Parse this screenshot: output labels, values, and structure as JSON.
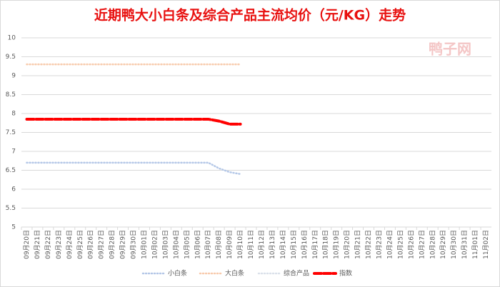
{
  "chart_data": {
    "type": "line",
    "title": "近期鸭大小白条及综合产品主流均价（元/KG）走势",
    "watermark": "鸭子网",
    "categories": [
      "09月20日",
      "09月21日",
      "09月22日",
      "09月23日",
      "09月24日",
      "09月25日",
      "09月26日",
      "09月27日",
      "09月28日",
      "09月29日",
      "09月30日",
      "10月01日",
      "10月02日",
      "10月03日",
      "10月04日",
      "10月05日",
      "10月06日",
      "10月07日",
      "10月08日",
      "10月09日",
      "10月10日",
      "10月11日",
      "10月12日",
      "10月13日",
      "10月14日",
      "10月15日",
      "10月16日",
      "10月17日",
      "10月18日",
      "10月19日",
      "10月20日",
      "10月21日",
      "10月22日",
      "10月23日",
      "10月24日",
      "10月25日",
      "10月26日",
      "10月27日",
      "10月28日",
      "10月29日",
      "10月30日",
      "10月31日",
      "11月01日",
      "11月02日"
    ],
    "series": [
      {
        "name": "小白条",
        "color": "#b4c7e7",
        "style": "dot",
        "values": [
          6.7,
          6.7,
          6.7,
          6.7,
          6.7,
          6.7,
          6.7,
          6.7,
          6.7,
          6.7,
          6.7,
          6.7,
          6.7,
          6.7,
          6.7,
          6.7,
          6.7,
          6.7,
          6.55,
          6.45,
          6.4,
          null,
          null,
          null,
          null,
          null,
          null,
          null,
          null,
          null,
          null,
          null,
          null,
          null,
          null,
          null,
          null,
          null,
          null,
          null,
          null,
          null,
          null,
          null
        ]
      },
      {
        "name": "大白条",
        "color": "#f8cbad",
        "style": "dot",
        "values": [
          9.3,
          9.3,
          9.3,
          9.3,
          9.3,
          9.3,
          9.3,
          9.3,
          9.3,
          9.3,
          9.3,
          9.3,
          9.3,
          9.3,
          9.3,
          9.3,
          9.3,
          9.3,
          9.3,
          9.3,
          9.3,
          null,
          null,
          null,
          null,
          null,
          null,
          null,
          null,
          null,
          null,
          null,
          null,
          null,
          null,
          null,
          null,
          null,
          null,
          null,
          null,
          null,
          null,
          null
        ]
      },
      {
        "name": "综合产品",
        "color": "#dbe1ea",
        "style": "dot",
        "values": [
          7.85,
          7.85,
          7.85,
          7.85,
          7.85,
          7.85,
          7.85,
          7.85,
          7.85,
          7.85,
          7.85,
          7.85,
          7.85,
          7.85,
          7.85,
          7.85,
          7.85,
          7.85,
          7.8,
          7.72,
          7.72,
          null,
          null,
          null,
          null,
          null,
          null,
          null,
          null,
          null,
          null,
          null,
          null,
          null,
          null,
          null,
          null,
          null,
          null,
          null,
          null,
          null,
          null,
          null
        ]
      },
      {
        "name": "指数",
        "color": "#ff0000",
        "style": "dash",
        "values": [
          7.85,
          7.85,
          7.85,
          7.85,
          7.85,
          7.85,
          7.85,
          7.85,
          7.85,
          7.85,
          7.85,
          7.85,
          7.85,
          7.85,
          7.85,
          7.85,
          7.85,
          7.85,
          7.8,
          7.72,
          7.72,
          null,
          null,
          null,
          null,
          null,
          null,
          null,
          null,
          null,
          null,
          null,
          null,
          null,
          null,
          null,
          null,
          null,
          null,
          null,
          null,
          null,
          null,
          null
        ]
      }
    ],
    "ylim": [
      5,
      10
    ],
    "yticks": [
      5,
      5.5,
      6,
      6.5,
      7,
      7.5,
      8,
      8.5,
      9,
      9.5,
      10
    ],
    "grid": true,
    "legend": "bottom"
  }
}
